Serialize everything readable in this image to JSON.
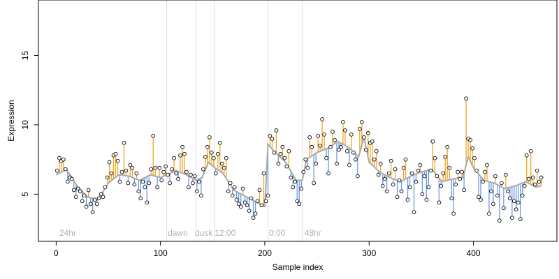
{
  "chart_data": {
    "type": "scatter",
    "xlabel": "Sample index",
    "ylabel": "Expression",
    "xlim": [
      -17,
      480
    ],
    "ylim": [
      1.6,
      19.0
    ],
    "x_ticks": [
      0,
      100,
      200,
      300,
      400
    ],
    "y_ticks": [
      5,
      10,
      15
    ],
    "grid": false,
    "legend": "none",
    "colors": {
      "fit_line": "#aaaaaa",
      "residual_above": "#f5a623",
      "residual_below": "#6a9ae6",
      "point_fill": "#ffffff",
      "point_stroke": "#000000",
      "divider": "#dedede",
      "region_label": "#b0b0b0"
    },
    "region_dividers": [
      106,
      134,
      152,
      203,
      236
    ],
    "region_labels": [
      {
        "text": "24hr",
        "x": 3
      },
      {
        "text": "dawn",
        "x": 107
      },
      {
        "text": "dusk",
        "x": 133
      },
      {
        "text": "12:00",
        "x": 152
      },
      {
        "text": "0:00",
        "x": 204
      },
      {
        "text": "48hr",
        "x": 238
      }
    ],
    "series": [
      {
        "name": "fitted",
        "points": [
          [
            0,
            6.4
          ],
          [
            10,
            6.8
          ],
          [
            20,
            5.6
          ],
          [
            30,
            4.8
          ],
          [
            40,
            4.6
          ],
          [
            50,
            5.8
          ],
          [
            60,
            6.4
          ],
          [
            70,
            6.3
          ],
          [
            80,
            6.0
          ],
          [
            90,
            6.4
          ],
          [
            100,
            6.2
          ],
          [
            106,
            6.4
          ],
          [
            115,
            6.7
          ],
          [
            125,
            6.4
          ],
          [
            134,
            6.0
          ],
          [
            140,
            6.2
          ],
          [
            146,
            7.3
          ],
          [
            152,
            6.9
          ],
          [
            160,
            6.5
          ],
          [
            170,
            5.3
          ],
          [
            180,
            4.9
          ],
          [
            190,
            4.5
          ],
          [
            200,
            4.1
          ],
          [
            203,
            8.6
          ],
          [
            210,
            8.0
          ],
          [
            220,
            7.3
          ],
          [
            230,
            6.0
          ],
          [
            236,
            6.0
          ],
          [
            240,
            7.5
          ],
          [
            250,
            8.0
          ],
          [
            260,
            8.3
          ],
          [
            270,
            8.8
          ],
          [
            280,
            8.4
          ],
          [
            290,
            7.7
          ],
          [
            295,
            9.1
          ],
          [
            300,
            7.3
          ],
          [
            310,
            6.6
          ],
          [
            320,
            6.2
          ],
          [
            330,
            5.9
          ],
          [
            340,
            6.3
          ],
          [
            350,
            6.6
          ],
          [
            360,
            6.8
          ],
          [
            370,
            5.9
          ],
          [
            380,
            6.1
          ],
          [
            390,
            6.2
          ],
          [
            395,
            7.7
          ],
          [
            400,
            6.9
          ],
          [
            410,
            6.0
          ],
          [
            420,
            5.8
          ],
          [
            430,
            5.4
          ],
          [
            440,
            5.6
          ],
          [
            450,
            5.9
          ],
          [
            460,
            5.5
          ],
          [
            465,
            5.6
          ]
        ]
      },
      {
        "name": "observed",
        "points": [
          [
            1,
            6.7
          ],
          [
            3,
            7.6
          ],
          [
            5,
            7.4
          ],
          [
            7,
            7.5
          ],
          [
            9,
            6.8
          ],
          [
            11,
            5.9
          ],
          [
            13,
            6.2
          ],
          [
            15,
            6.1
          ],
          [
            17,
            5.3
          ],
          [
            19,
            4.8
          ],
          [
            21,
            5.4
          ],
          [
            23,
            5.2
          ],
          [
            25,
            4.5
          ],
          [
            27,
            4.9
          ],
          [
            29,
            4.1
          ],
          [
            31,
            5.3
          ],
          [
            33,
            4.3
          ],
          [
            35,
            3.7
          ],
          [
            37,
            4.6
          ],
          [
            39,
            4.3
          ],
          [
            41,
            4.7
          ],
          [
            43,
            5.0
          ],
          [
            45,
            4.8
          ],
          [
            47,
            5.5
          ],
          [
            49,
            6.2
          ],
          [
            51,
            7.3
          ],
          [
            53,
            6.5
          ],
          [
            55,
            7.8
          ],
          [
            57,
            7.9
          ],
          [
            59,
            7.4
          ],
          [
            61,
            5.9
          ],
          [
            63,
            6.6
          ],
          [
            65,
            8.7
          ],
          [
            67,
            6.7
          ],
          [
            69,
            5.8
          ],
          [
            71,
            7.1
          ],
          [
            73,
            6.9
          ],
          [
            75,
            5.7
          ],
          [
            77,
            6.5
          ],
          [
            79,
            5.2
          ],
          [
            81,
            4.7
          ],
          [
            83,
            5.9
          ],
          [
            85,
            5.5
          ],
          [
            87,
            4.4
          ],
          [
            89,
            5.8
          ],
          [
            91,
            6.8
          ],
          [
            93,
            9.2
          ],
          [
            95,
            6.9
          ],
          [
            97,
            5.5
          ],
          [
            99,
            6.9
          ],
          [
            101,
            6.0
          ],
          [
            103,
            6.6
          ],
          [
            105,
            7.0
          ],
          [
            107,
            6.4
          ],
          [
            109,
            5.8
          ],
          [
            111,
            6.8
          ],
          [
            113,
            7.6
          ],
          [
            115,
            6.5
          ],
          [
            117,
            6.1
          ],
          [
            119,
            7.8
          ],
          [
            121,
            8.4
          ],
          [
            123,
            7.9
          ],
          [
            125,
            6.6
          ],
          [
            127,
            5.5
          ],
          [
            129,
            6.4
          ],
          [
            131,
            5.8
          ],
          [
            133,
            6.3
          ],
          [
            135,
            5.2
          ],
          [
            137,
            5.9
          ],
          [
            139,
            4.9
          ],
          [
            141,
            6.8
          ],
          [
            143,
            7.7
          ],
          [
            145,
            8.4
          ],
          [
            147,
            9.1
          ],
          [
            149,
            8.0
          ],
          [
            151,
            7.6
          ],
          [
            153,
            6.5
          ],
          [
            155,
            7.9
          ],
          [
            157,
            8.7
          ],
          [
            159,
            7.2
          ],
          [
            161,
            6.9
          ],
          [
            163,
            7.6
          ],
          [
            165,
            5.2
          ],
          [
            167,
            5.8
          ],
          [
            169,
            4.9
          ],
          [
            171,
            5.5
          ],
          [
            173,
            4.6
          ],
          [
            175,
            4.3
          ],
          [
            177,
            4.1
          ],
          [
            179,
            5.4
          ],
          [
            181,
            4.4
          ],
          [
            183,
            4.2
          ],
          [
            185,
            3.8
          ],
          [
            187,
            4.7
          ],
          [
            189,
            3.3
          ],
          [
            191,
            3.6
          ],
          [
            193,
            4.5
          ],
          [
            195,
            5.3
          ],
          [
            197,
            4.2
          ],
          [
            199,
            6.5
          ],
          [
            201,
            4.5
          ],
          [
            203,
            4.9
          ],
          [
            205,
            9.2
          ],
          [
            207,
            9.0
          ],
          [
            209,
            8.0
          ],
          [
            211,
            9.6
          ],
          [
            213,
            7.2
          ],
          [
            215,
            7.9
          ],
          [
            217,
            8.4
          ],
          [
            219,
            7.6
          ],
          [
            221,
            7.0
          ],
          [
            223,
            8.1
          ],
          [
            225,
            6.2
          ],
          [
            227,
            5.5
          ],
          [
            229,
            5.9
          ],
          [
            231,
            4.5
          ],
          [
            233,
            4.3
          ],
          [
            235,
            5.4
          ],
          [
            237,
            6.6
          ],
          [
            239,
            7.5
          ],
          [
            241,
            6.9
          ],
          [
            243,
            9.1
          ],
          [
            245,
            8.4
          ],
          [
            247,
            5.8
          ],
          [
            249,
            7.2
          ],
          [
            251,
            9.2
          ],
          [
            253,
            8.5
          ],
          [
            255,
            10.4
          ],
          [
            257,
            9.3
          ],
          [
            259,
            7.6
          ],
          [
            261,
            6.5
          ],
          [
            263,
            8.4
          ],
          [
            265,
            9.5
          ],
          [
            267,
            8.9
          ],
          [
            269,
            7.2
          ],
          [
            271,
            8.2
          ],
          [
            273,
            8.4
          ],
          [
            275,
            10.2
          ],
          [
            277,
            9.6
          ],
          [
            279,
            8.1
          ],
          [
            281,
            7.1
          ],
          [
            283,
            9.3
          ],
          [
            285,
            8.0
          ],
          [
            287,
            7.5
          ],
          [
            289,
            6.3
          ],
          [
            291,
            9.7
          ],
          [
            293,
            10.2
          ],
          [
            295,
            9.1
          ],
          [
            297,
            8.2
          ],
          [
            299,
            9.4
          ],
          [
            301,
            8.7
          ],
          [
            303,
            8.8
          ],
          [
            305,
            7.5
          ],
          [
            307,
            8.1
          ],
          [
            309,
            6.4
          ],
          [
            311,
            7.2
          ],
          [
            313,
            5.6
          ],
          [
            315,
            6.1
          ],
          [
            317,
            5.2
          ],
          [
            319,
            6.5
          ],
          [
            321,
            7.4
          ],
          [
            323,
            5.7
          ],
          [
            325,
            6.8
          ],
          [
            327,
            4.8
          ],
          [
            329,
            6.0
          ],
          [
            331,
            5.2
          ],
          [
            333,
            6.9
          ],
          [
            335,
            7.5
          ],
          [
            337,
            4.6
          ],
          [
            339,
            5.5
          ],
          [
            341,
            6.5
          ],
          [
            343,
            3.7
          ],
          [
            345,
            5.9
          ],
          [
            347,
            6.7
          ],
          [
            349,
            7.1
          ],
          [
            351,
            5.0
          ],
          [
            353,
            6.3
          ],
          [
            355,
            4.6
          ],
          [
            357,
            5.5
          ],
          [
            359,
            6.7
          ],
          [
            361,
            8.8
          ],
          [
            363,
            7.6
          ],
          [
            365,
            6.3
          ],
          [
            367,
            4.4
          ],
          [
            369,
            5.6
          ],
          [
            371,
            6.5
          ],
          [
            373,
            7.7
          ],
          [
            375,
            8.4
          ],
          [
            377,
            6.9
          ],
          [
            379,
            4.7
          ],
          [
            381,
            3.6
          ],
          [
            383,
            5.7
          ],
          [
            385,
            6.6
          ],
          [
            387,
            6.1
          ],
          [
            389,
            6.6
          ],
          [
            391,
            5.3
          ],
          [
            393,
            11.9
          ],
          [
            395,
            9.0
          ],
          [
            397,
            8.9
          ],
          [
            399,
            8.3
          ],
          [
            401,
            7.6
          ],
          [
            403,
            6.7
          ],
          [
            405,
            4.8
          ],
          [
            407,
            4.6
          ],
          [
            409,
            5.9
          ],
          [
            411,
            6.6
          ],
          [
            413,
            7.1
          ],
          [
            415,
            3.6
          ],
          [
            417,
            5.2
          ],
          [
            419,
            4.3
          ],
          [
            421,
            6.3
          ],
          [
            423,
            4.9
          ],
          [
            425,
            3.1
          ],
          [
            427,
            5.8
          ],
          [
            429,
            4.0
          ],
          [
            431,
            6.4
          ],
          [
            433,
            5.2
          ],
          [
            435,
            4.7
          ],
          [
            437,
            3.3
          ],
          [
            439,
            4.5
          ],
          [
            441,
            3.9
          ],
          [
            443,
            4.4
          ],
          [
            445,
            3.2
          ],
          [
            447,
            4.9
          ],
          [
            449,
            5.6
          ],
          [
            451,
            7.8
          ],
          [
            453,
            6.1
          ],
          [
            455,
            8.1
          ],
          [
            457,
            6.2
          ],
          [
            459,
            5.7
          ],
          [
            461,
            6.7
          ],
          [
            463,
            5.9
          ],
          [
            465,
            6.2
          ]
        ]
      }
    ]
  }
}
